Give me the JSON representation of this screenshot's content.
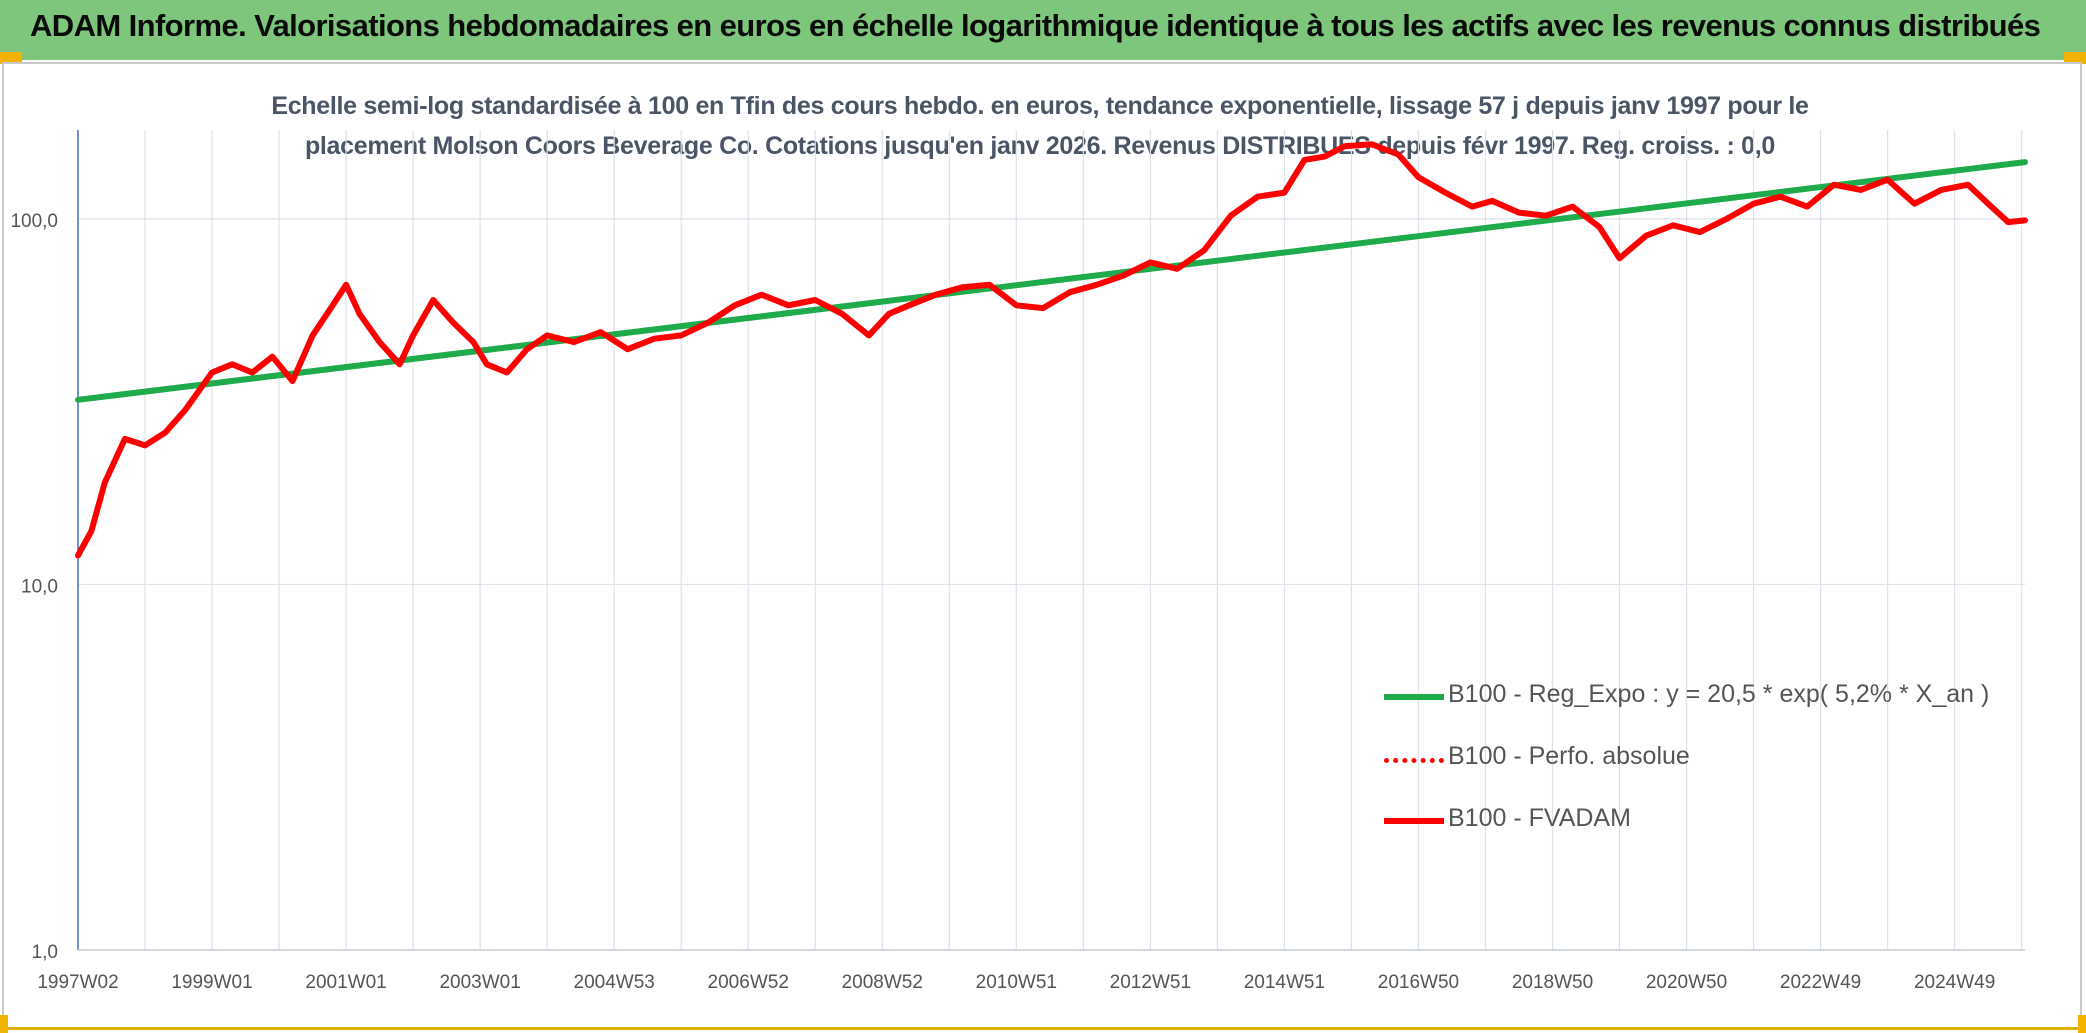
{
  "header": {
    "title": "ADAM Informe. Valorisations hebdomadaires en euros en échelle logarithmique identique à tous les actifs avec les revenus connus distribués"
  },
  "chart_data": {
    "type": "line",
    "title": "Echelle semi-log standardisée à 100 en Tfin des cours hebdo. en euros, tendance exponentielle, lissage 57 j depuis janv 1997 pour le placement Molson Coors Beverage Co. Cotations jusqu'en janv 2026. Revenus DISTRIBUES depuis févr 1997. Reg. croiss. : 0,0",
    "title_lines": [
      "Echelle semi-log standardisée à 100 en Tfin des cours hebdo. en euros, tendance exponentielle, lissage 57 j depuis janv 1997 pour le",
      "placement Molson Coors Beverage Co. Cotations jusqu'en janv 2026. Revenus DISTRIBUES depuis févr 1997. Reg. croiss. : 0,0"
    ],
    "y_scale": "log",
    "ylim": [
      1,
      175
    ],
    "x_range": [
      1997.0,
      2026.05
    ],
    "y_ticks": [
      {
        "value": 1,
        "label": "1,0"
      },
      {
        "value": 10,
        "label": "10,0"
      },
      {
        "value": 100,
        "label": "100,0"
      }
    ],
    "x_ticks": [
      {
        "value": 1997.0,
        "label": "1997W02"
      },
      {
        "value": 1999.0,
        "label": "1999W01"
      },
      {
        "value": 2001.0,
        "label": "2001W01"
      },
      {
        "value": 2003.0,
        "label": "2003W01"
      },
      {
        "value": 2005.0,
        "label": "2004W53"
      },
      {
        "value": 2007.0,
        "label": "2006W52"
      },
      {
        "value": 2009.0,
        "label": "2008W52"
      },
      {
        "value": 2011.0,
        "label": "2010W51"
      },
      {
        "value": 2013.0,
        "label": "2012W51"
      },
      {
        "value": 2015.0,
        "label": "2014W51"
      },
      {
        "value": 2017.0,
        "label": "2016W50"
      },
      {
        "value": 2019.0,
        "label": "2018W50"
      },
      {
        "value": 2021.0,
        "label": "2020W50"
      },
      {
        "value": 2023.0,
        "label": "2022W49"
      },
      {
        "value": 2025.0,
        "label": "2024W49"
      }
    ],
    "grid": true,
    "legend_placement": "bottom-right",
    "series": [
      {
        "name": "B100 - Reg_Expo : y = 20,5 * exp( 5,2% *  X_an )",
        "color": "#1faa4b",
        "style": "solid",
        "x": [
          1997.0,
          2026.05
        ],
        "values": [
          32,
          143
        ]
      },
      {
        "name": "B100 - Perfo. absolue",
        "color": "#ff0000",
        "style": "dotted",
        "x": [],
        "values": []
      },
      {
        "name": "B100 - FVADAM",
        "color": "#ff0000",
        "style": "solid",
        "x": [
          1997.0,
          1997.2,
          1997.4,
          1997.7,
          1998.0,
          1998.3,
          1998.6,
          1999.0,
          1999.3,
          1999.6,
          1999.9,
          2000.2,
          2000.5,
          2000.8,
          2001.0,
          2001.2,
          2001.5,
          2001.8,
          2002.0,
          2002.3,
          2002.6,
          2002.9,
          2003.1,
          2003.4,
          2003.7,
          2004.0,
          2004.4,
          2004.8,
          2005.2,
          2005.6,
          2006.0,
          2006.4,
          2006.8,
          2007.2,
          2007.6,
          2008.0,
          2008.4,
          2008.8,
          2009.1,
          2009.4,
          2009.8,
          2010.2,
          2010.6,
          2011.0,
          2011.4,
          2011.8,
          2012.2,
          2012.6,
          2013.0,
          2013.4,
          2013.8,
          2014.2,
          2014.6,
          2015.0,
          2015.3,
          2015.6,
          2015.9,
          2016.3,
          2016.7,
          2017.0,
          2017.4,
          2017.8,
          2018.1,
          2018.5,
          2018.9,
          2019.3,
          2019.7,
          2020.0,
          2020.4,
          2020.8,
          2021.2,
          2021.6,
          2022.0,
          2022.4,
          2022.8,
          2023.2,
          2023.6,
          2024.0,
          2024.4,
          2024.8,
          2025.2,
          2025.5,
          2025.8,
          2026.05
        ],
        "values": [
          12,
          14,
          19,
          25,
          24,
          26,
          30,
          38,
          40,
          38,
          42,
          36,
          48,
          58,
          66,
          55,
          46,
          40,
          48,
          60,
          52,
          46,
          40,
          38,
          44,
          48,
          46,
          49,
          44,
          47,
          48,
          52,
          58,
          62,
          58,
          60,
          55,
          48,
          55,
          58,
          62,
          65,
          66,
          58,
          57,
          63,
          66,
          70,
          76,
          73,
          82,
          102,
          115,
          118,
          145,
          148,
          158,
          160,
          150,
          130,
          118,
          108,
          112,
          104,
          102,
          108,
          95,
          78,
          90,
          96,
          92,
          100,
          110,
          115,
          108,
          124,
          120,
          128,
          110,
          120,
          124,
          110,
          98,
          99
        ]
      }
    ]
  }
}
